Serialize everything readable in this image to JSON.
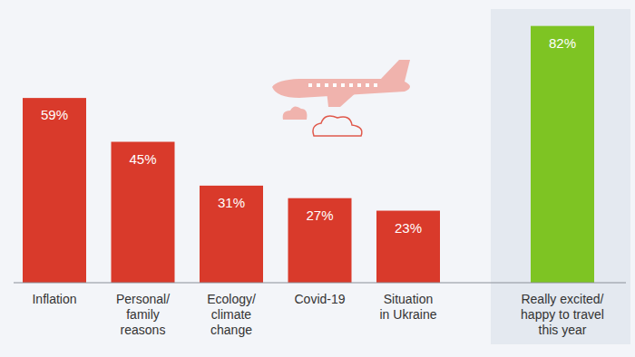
{
  "chart_data": {
    "type": "bar",
    "categories": [
      "Inflation",
      "Personal/\nfamily\nreasons",
      "Ecology/\nclimate\nchange",
      "Covid-19",
      "Situation\nin Ukraine",
      "Really excited/\nhappy to travel\nthis year"
    ],
    "values": [
      59,
      45,
      31,
      27,
      23,
      82
    ],
    "value_labels": [
      "59%",
      "45%",
      "31%",
      "27%",
      "23%",
      "82%"
    ],
    "colors": [
      "#d93a2b",
      "#d93a2b",
      "#d93a2b",
      "#d93a2b",
      "#d93a2b",
      "#7ec423"
    ],
    "ylim": [
      0,
      90
    ],
    "data_labels": true,
    "tick_labels": "x",
    "grid": false
  }
}
